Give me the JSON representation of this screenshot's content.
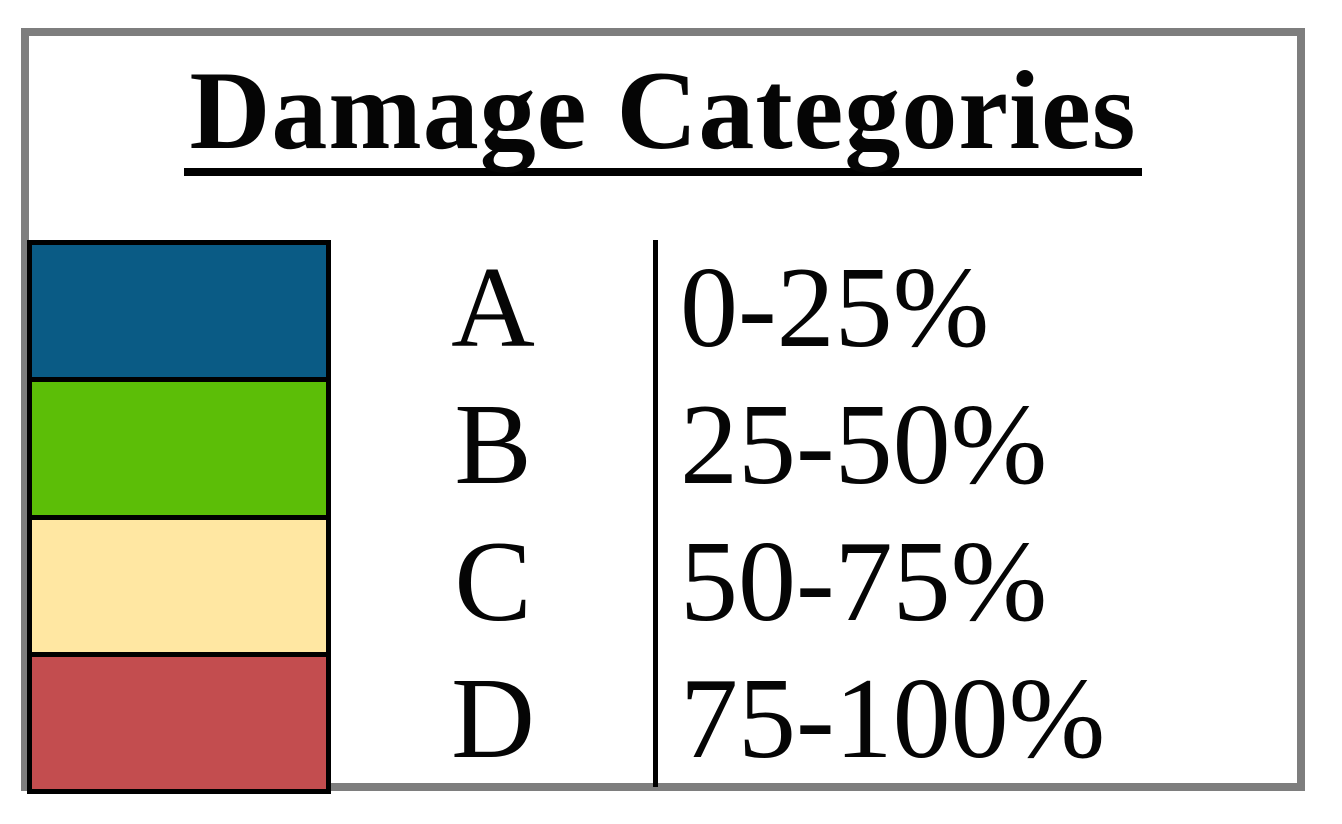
{
  "title": "Damage Categories",
  "categories": [
    {
      "letter": "A",
      "range": "0-25%",
      "color": "#0a5b85",
      "color_name": "dark-blue"
    },
    {
      "letter": "B",
      "range": "25-50%",
      "color": "#5cbe07",
      "color_name": "green"
    },
    {
      "letter": "C",
      "range": "50-75%",
      "color": "#ffe7a2",
      "color_name": "pale-yellow"
    },
    {
      "letter": "D",
      "range": "75-100%",
      "color": "#c34d4f",
      "color_name": "brick-red"
    }
  ],
  "frame": {
    "border_color": "#7e7e7e",
    "swatch_border_color": "#000000",
    "divider_color": "#000000",
    "text_color": "#050505",
    "background": "#ffffff"
  }
}
